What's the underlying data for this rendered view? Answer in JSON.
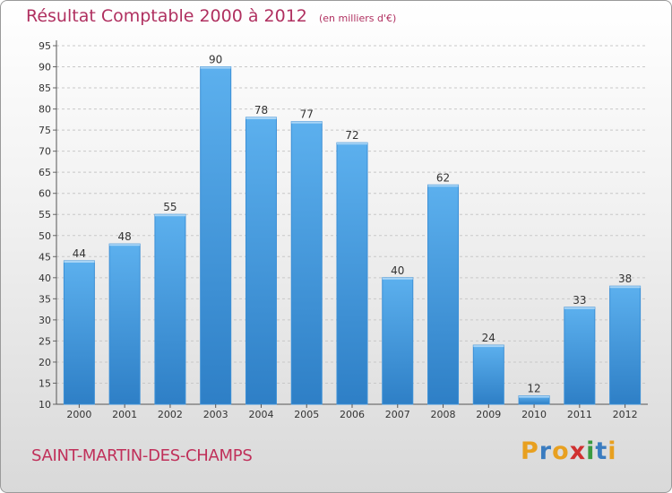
{
  "chart_data": {
    "type": "bar",
    "title": "Résultat Comptable 2000 à 2012",
    "unit_label": "(en milliers d'€)",
    "categories": [
      "2000",
      "2001",
      "2002",
      "2003",
      "2004",
      "2005",
      "2006",
      "2007",
      "2008",
      "2009",
      "2010",
      "2011",
      "2012"
    ],
    "values": [
      44,
      48,
      55,
      90,
      78,
      77,
      72,
      40,
      62,
      24,
      12,
      33,
      38
    ],
    "ylim": [
      10,
      95
    ],
    "yticks": [
      10,
      15,
      20,
      25,
      30,
      35,
      40,
      45,
      50,
      55,
      60,
      65,
      70,
      75,
      80,
      85,
      90,
      95
    ],
    "xlabel": "",
    "ylabel": "",
    "grid": true,
    "bar_color": "#4a9de0",
    "title_color": "#b03060"
  },
  "footer": {
    "place_name": "SAINT-MARTIN-DES-CHAMPS",
    "logo_text": "Proxiti",
    "logo_colors": [
      "#e8a020",
      "#3a7cc0",
      "#e8a020",
      "#d03030",
      "#3a9a40",
      "#3a7cc0",
      "#e8a020"
    ]
  }
}
